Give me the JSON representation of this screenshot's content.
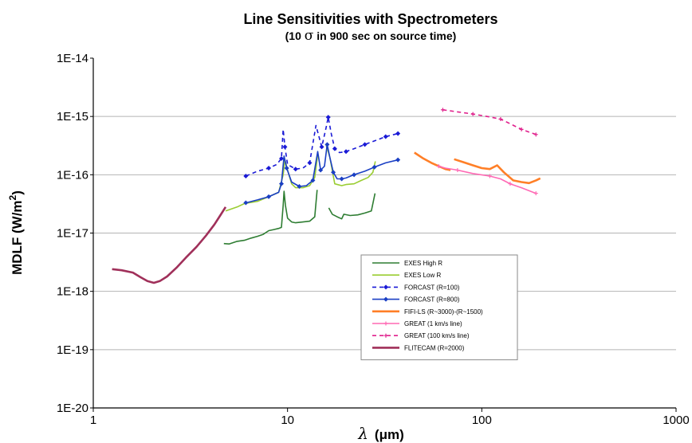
{
  "chart_data": {
    "type": "line",
    "title": "Line Sensitivities with Spectrometers",
    "subtitle_pre": "(10 ",
    "subtitle_sigma": "σ",
    "subtitle_post": " in 900 sec on source time)",
    "xlabel_sym": "λ",
    "xlabel_unit": "(μm)",
    "ylabel_main": "MDLF (W/m",
    "ylabel_sup": "2",
    "ylabel_end": ")",
    "x_scale": "log",
    "y_scale": "log",
    "xlim": [
      1,
      1000
    ],
    "ylim": [
      1e-20,
      1e-14
    ],
    "x_ticks": [
      {
        "value": 1,
        "label": "1"
      },
      {
        "value": 10,
        "label": "10"
      },
      {
        "value": 100,
        "label": "100"
      },
      {
        "value": 1000,
        "label": "1000"
      }
    ],
    "y_ticks": [
      {
        "value": 1e-14,
        "label": "1E-14"
      },
      {
        "value": 1e-15,
        "label": "1E-15"
      },
      {
        "value": 1e-16,
        "label": "1E-16"
      },
      {
        "value": 1e-17,
        "label": "1E-17"
      },
      {
        "value": 1e-18,
        "label": "1E-18"
      },
      {
        "value": 1e-19,
        "label": "1E-19"
      },
      {
        "value": 1e-20,
        "label": "1E-20"
      }
    ],
    "grid": "horizontal",
    "legend_position": "lower-center",
    "series": [
      {
        "name": "EXES High R",
        "color": "#2e7d32",
        "dash": false,
        "marker": "none",
        "segments": [
          [
            [
              4.7,
              6.6e-18
            ],
            [
              5.0,
              6.5e-18
            ],
            [
              5.5,
              7.2e-18
            ],
            [
              6,
              7.5e-18
            ],
            [
              6.5,
              8.2e-18
            ],
            [
              7,
              8.8e-18
            ],
            [
              7.5,
              9.5e-18
            ],
            [
              8,
              1.1e-17
            ],
            [
              8.5,
              1.15e-17
            ],
            [
              9.0,
              1.2e-17
            ],
            [
              9.3,
              1.25e-17
            ],
            [
              9.5,
              3e-17
            ],
            [
              9.6,
              5.2e-17
            ],
            [
              9.75,
              3e-17
            ],
            [
              10,
              1.8e-17
            ],
            [
              10.5,
              1.55e-17
            ],
            [
              11,
              1.5e-17
            ],
            [
              12,
              1.55e-17
            ],
            [
              13,
              1.6e-17
            ],
            [
              13.8,
              1.9e-17
            ],
            [
              14.2,
              5.5e-17
            ]
          ],
          [
            [
              16.3,
              2.7e-17
            ],
            [
              17,
              2.1e-17
            ],
            [
              18,
              1.9e-17
            ],
            [
              19,
              1.75e-17
            ],
            [
              19.5,
              2.1e-17
            ],
            [
              21,
              2e-17
            ],
            [
              23,
              2.05e-17
            ],
            [
              25,
              2.2e-17
            ],
            [
              27,
              2.4e-17
            ],
            [
              28.2,
              4.8e-17
            ]
          ]
        ]
      },
      {
        "name": "EXES Low R",
        "color": "#9acd32",
        "dash": false,
        "marker": "none",
        "segments": [
          [
            [
              4.8,
              2.4e-17
            ],
            [
              5.5,
              2.8e-17
            ],
            [
              6,
              3.2e-17
            ],
            [
              7,
              3.5e-17
            ],
            [
              8,
              4.2e-17
            ],
            [
              9,
              5e-17
            ],
            [
              9.5,
              1e-16
            ],
            [
              9.7,
              1.8e-16
            ],
            [
              10,
              1.2e-16
            ],
            [
              10.5,
              7e-17
            ],
            [
              11,
              6e-17
            ],
            [
              12,
              6e-17
            ],
            [
              13,
              6.5e-17
            ],
            [
              13.8,
              9e-17
            ],
            [
              14.3,
              2.2e-16
            ]
          ],
          [
            [
              15.8,
              3.2e-16
            ],
            [
              16.5,
              2e-16
            ],
            [
              17.5,
              7e-17
            ],
            [
              19,
              6.5e-17
            ],
            [
              20,
              6.8e-17
            ],
            [
              22,
              7e-17
            ],
            [
              24,
              8e-17
            ],
            [
              26,
              9e-17
            ],
            [
              27.5,
              1.1e-16
            ],
            [
              28.3,
              1.7e-16
            ]
          ]
        ]
      },
      {
        "name": "FORCAST (R=100)",
        "color": "#1a1ad6",
        "dash": true,
        "marker": "diamond",
        "segments": [
          [
            [
              6.1,
              9.5e-17
            ],
            [
              7,
              1.15e-16
            ],
            [
              8,
              1.3e-16
            ],
            [
              8.8,
              1.5e-16
            ],
            [
              9.3,
              1.9e-16
            ],
            [
              9.5,
              6e-16
            ],
            [
              9.7,
              3e-16
            ],
            [
              10,
              1.5e-16
            ],
            [
              11,
              1.25e-16
            ],
            [
              12,
              1.3e-16
            ],
            [
              13,
              1.6e-16
            ],
            [
              14,
              7e-16
            ],
            [
              15,
              3e-16
            ],
            [
              15.8,
              6.5e-16
            ],
            [
              16.2,
              9.7e-16
            ],
            [
              16.8,
              5e-16
            ],
            [
              17.5,
              2.8e-16
            ],
            [
              18.5,
              2.4e-16
            ],
            [
              20,
              2.5e-16
            ],
            [
              22,
              2.8e-16
            ],
            [
              25,
              3.3e-16
            ],
            [
              28,
              3.8e-16
            ],
            [
              32,
              4.5e-16
            ],
            [
              37,
              5.1e-16
            ]
          ]
        ]
      },
      {
        "name": "FORCAST (R=800)",
        "color": "#1a3fc4",
        "dash": false,
        "marker": "diamond",
        "segments": [
          [
            [
              6.1,
              3.3e-17
            ],
            [
              7,
              3.7e-17
            ],
            [
              8,
              4.2e-17
            ],
            [
              9,
              5e-17
            ],
            [
              9.3,
              7e-17
            ],
            [
              9.6,
              2.1e-16
            ],
            [
              9.9,
              1.3e-16
            ],
            [
              10.5,
              7.5e-17
            ],
            [
              11.5,
              6.3e-17
            ],
            [
              12.5,
              6.5e-17
            ],
            [
              13.5,
              8e-17
            ],
            [
              14.3,
              2.5e-16
            ],
            [
              14.8,
              1.2e-16
            ],
            [
              15.5,
              1.4e-16
            ],
            [
              16,
              3.3e-16
            ],
            [
              16.5,
              2e-16
            ],
            [
              17.2,
              1.1e-16
            ],
            [
              18,
              8.5e-17
            ],
            [
              19,
              8.5e-17
            ],
            [
              20,
              8.8e-17
            ],
            [
              22,
              1e-16
            ],
            [
              25,
              1.15e-16
            ],
            [
              28,
              1.35e-16
            ],
            [
              32,
              1.6e-16
            ],
            [
              37,
              1.8e-16
            ]
          ]
        ]
      },
      {
        "name": "FIFI-LS (R~3000)-(R~1500)",
        "color": "#ff7f27",
        "dash": false,
        "marker": "none",
        "segments": [
          [
            [
              45,
              2.4e-16
            ],
            [
              50,
              1.9e-16
            ],
            [
              55,
              1.6e-16
            ],
            [
              60,
              1.4e-16
            ],
            [
              65,
              1.25e-16
            ],
            [
              69,
              1.2e-16
            ]
          ],
          [
            [
              72,
              1.85e-16
            ],
            [
              80,
              1.65e-16
            ],
            [
              90,
              1.45e-16
            ],
            [
              100,
              1.3e-16
            ],
            [
              110,
              1.25e-16
            ],
            [
              120,
              1.45e-16
            ],
            [
              130,
              1.1e-16
            ],
            [
              145,
              8e-17
            ],
            [
              160,
              7.5e-17
            ],
            [
              175,
              7.2e-17
            ],
            [
              190,
              8e-17
            ],
            [
              200,
              8.7e-17
            ]
          ]
        ]
      },
      {
        "name": "GREAT (1 km/s line)",
        "color": "#ff69b4",
        "dash": false,
        "marker": "star",
        "segments": [
          [
            [
              60,
              1.4e-16
            ],
            [
              65,
              1.3e-16
            ],
            [
              75,
              1.2e-16
            ],
            [
              90,
              1.05e-16
            ],
            [
              110,
              9.5e-17
            ],
            [
              125,
              8.5e-17
            ],
            [
              140,
              7e-17
            ],
            [
              160,
              6e-17
            ],
            [
              190,
              4.8e-17
            ]
          ]
        ]
      },
      {
        "name": "GREAT (100 km/s line)",
        "color": "#e0208c",
        "dash": true,
        "marker": "star",
        "segments": [
          [
            [
              63,
              1.3e-15
            ],
            [
              75,
              1.2e-15
            ],
            [
              90,
              1.1e-15
            ],
            [
              110,
              9.8e-16
            ],
            [
              125,
              9e-16
            ],
            [
              140,
              7.5e-16
            ],
            [
              160,
              6e-16
            ],
            [
              190,
              4.9e-16
            ]
          ]
        ]
      },
      {
        "name": "FLITECAM (R=2000)",
        "color": "#a0305a",
        "dash": false,
        "marker": "none",
        "segments": [
          [
            [
              1.25,
              2.4e-18
            ],
            [
              1.4,
              2.3e-18
            ],
            [
              1.6,
              2.1e-18
            ],
            [
              1.75,
              1.75e-18
            ],
            [
              1.9,
              1.5e-18
            ],
            [
              2.05,
              1.4e-18
            ],
            [
              2.2,
              1.5e-18
            ],
            [
              2.4,
              1.8e-18
            ],
            [
              2.7,
              2.6e-18
            ],
            [
              3.0,
              3.8e-18
            ],
            [
              3.4,
              5.8e-18
            ],
            [
              3.8,
              9e-18
            ],
            [
              4.2,
              1.4e-17
            ],
            [
              4.5,
              2e-17
            ],
            [
              4.8,
              2.8e-17
            ]
          ]
        ]
      }
    ]
  }
}
